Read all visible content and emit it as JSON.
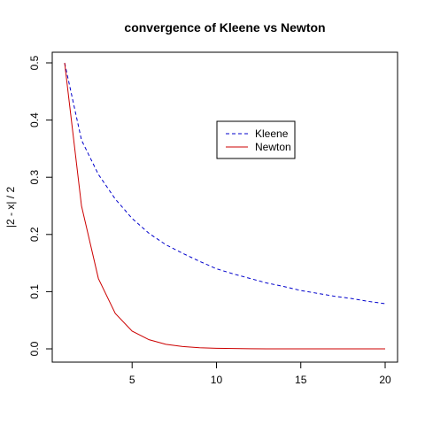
{
  "chart_data": {
    "type": "line",
    "title": "convergence of Kleene vs Newton",
    "xlabel": "",
    "ylabel": "|2 - x| / 2",
    "xlim": [
      1,
      20
    ],
    "ylim": [
      0,
      0.5
    ],
    "x_ticks": [
      5,
      10,
      15,
      20
    ],
    "y_ticks": [
      0.0,
      0.1,
      0.2,
      0.3,
      0.4,
      0.5
    ],
    "y_tick_labels": [
      "0.0",
      "0.1",
      "0.2",
      "0.3",
      "0.4",
      "0.5"
    ],
    "grid": false,
    "legend_position": "top-right",
    "x": [
      1,
      2,
      3,
      4,
      5,
      6,
      7,
      8,
      9,
      10,
      11,
      12,
      13,
      14,
      15,
      16,
      17,
      18,
      19,
      20
    ],
    "series": [
      {
        "name": "Kleene",
        "color": "#0000cc",
        "dash": "dashed",
        "values": [
          0.5,
          0.365,
          0.305,
          0.262,
          0.228,
          0.202,
          0.182,
          0.167,
          0.153,
          0.14,
          0.131,
          0.123,
          0.115,
          0.109,
          0.102,
          0.097,
          0.092,
          0.088,
          0.083,
          0.079
        ]
      },
      {
        "name": "Newton",
        "color": "#cc0000",
        "dash": "solid",
        "values": [
          0.5,
          0.25,
          0.123,
          0.062,
          0.031,
          0.016,
          0.008,
          0.004,
          0.002,
          0.001,
          0.0005,
          0.0002,
          0.0001,
          0.0001,
          0.0,
          0.0,
          0.0,
          0.0,
          0.0,
          0.0
        ]
      }
    ]
  }
}
